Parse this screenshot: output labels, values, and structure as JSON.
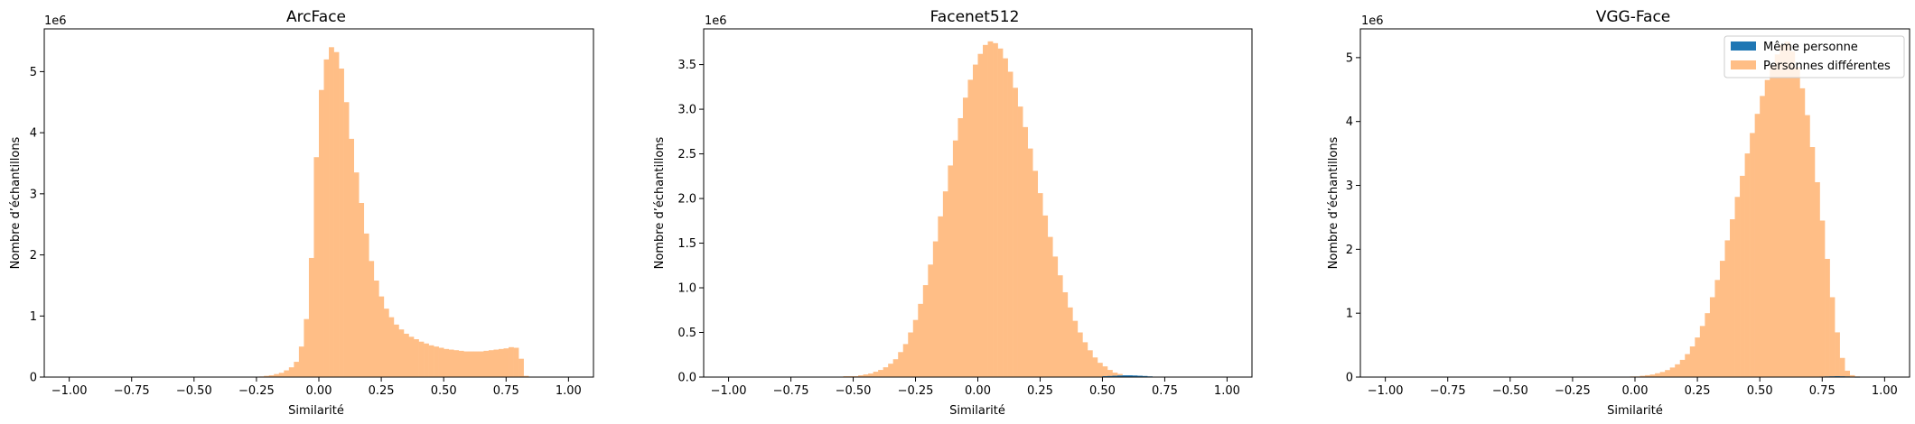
{
  "figure": {
    "background": "#ffffff"
  },
  "legend": {
    "entries": [
      {
        "label": "Même personne",
        "color": "#1f77b4"
      },
      {
        "label": "Personnes différentes",
        "color": "#ffbe86"
      }
    ]
  },
  "chart_data": [
    {
      "type": "histogram",
      "title": "ArcFace",
      "xlabel": "Similarité",
      "ylabel": "Nombre d’échantillons",
      "offset_text": "1e6",
      "xlim": [
        -1.1,
        1.1
      ],
      "ylim": [
        0,
        5.7
      ],
      "xticks": [
        -1.0,
        -0.75,
        -0.5,
        -0.25,
        0.0,
        0.25,
        0.5,
        0.75,
        1.0
      ],
      "xtick_labels": [
        "−1.00",
        "−0.75",
        "−0.50",
        "−0.25",
        "0.00",
        "0.25",
        "0.50",
        "0.75",
        "1.00"
      ],
      "yticks": [
        0,
        1,
        2,
        3,
        4,
        5
      ],
      "ytick_labels": [
        "0",
        "1",
        "2",
        "3",
        "4",
        "5"
      ],
      "bin_start": -1.0,
      "bin_width": 0.02,
      "series": [
        {
          "name": "Personnes différentes",
          "color": "#ffbe86",
          "values": [
            0,
            0,
            0,
            0,
            0,
            0,
            0,
            0,
            0,
            0,
            0,
            0,
            0,
            0,
            0,
            0,
            0,
            0,
            0,
            0,
            0,
            0,
            0,
            0,
            0,
            0,
            0,
            0,
            0,
            0,
            0,
            0,
            0,
            0,
            0,
            0,
            0,
            0,
            0.01,
            0.02,
            0.03,
            0.05,
            0.07,
            0.11,
            0.16,
            0.25,
            0.5,
            0.95,
            1.95,
            3.6,
            4.7,
            5.2,
            5.4,
            5.32,
            5.05,
            4.5,
            3.9,
            3.35,
            2.85,
            2.35,
            1.9,
            1.58,
            1.32,
            1.12,
            0.98,
            0.86,
            0.78,
            0.71,
            0.66,
            0.62,
            0.58,
            0.55,
            0.52,
            0.5,
            0.48,
            0.46,
            0.45,
            0.44,
            0.43,
            0.42,
            0.42,
            0.42,
            0.42,
            0.43,
            0.44,
            0.45,
            0.46,
            0.47,
            0.49,
            0.48,
            0.3,
            0.02,
            0,
            0,
            0,
            0,
            0,
            0,
            0,
            0
          ]
        },
        {
          "name": "Même personne",
          "color": "#1f77b4",
          "values": [
            0,
            0,
            0,
            0,
            0,
            0,
            0,
            0,
            0,
            0,
            0,
            0,
            0,
            0,
            0,
            0,
            0,
            0,
            0,
            0,
            0,
            0,
            0,
            0,
            0,
            0,
            0,
            0,
            0,
            0,
            0,
            0,
            0,
            0,
            0,
            0,
            0,
            0,
            0,
            0,
            0,
            0,
            0,
            0,
            0,
            0,
            0,
            0,
            0,
            0,
            0,
            0,
            0,
            0,
            0,
            0,
            0,
            0,
            0,
            0,
            0,
            0,
            0,
            0,
            0,
            0,
            0,
            0,
            0,
            0,
            0,
            0,
            0,
            0,
            0,
            0,
            0,
            0,
            0,
            0,
            0,
            0,
            0,
            0,
            0,
            0,
            0,
            0,
            0,
            0,
            0,
            0,
            0,
            0,
            0,
            0,
            0,
            0,
            0,
            0
          ]
        }
      ]
    },
    {
      "type": "histogram",
      "title": "Facenet512",
      "xlabel": "Similarité",
      "ylabel": "Nombre d’échantillons",
      "offset_text": "1e6",
      "xlim": [
        -1.1,
        1.1
      ],
      "ylim": [
        0,
        3.9
      ],
      "xticks": [
        -1.0,
        -0.75,
        -0.5,
        -0.25,
        0.0,
        0.25,
        0.5,
        0.75,
        1.0
      ],
      "xtick_labels": [
        "−1.00",
        "−0.75",
        "−0.50",
        "−0.25",
        "0.00",
        "0.25",
        "0.50",
        "0.75",
        "1.00"
      ],
      "yticks": [
        0,
        0.5,
        1.0,
        1.5,
        2.0,
        2.5,
        3.0,
        3.5
      ],
      "ytick_labels": [
        "0.0",
        "0.5",
        "1.0",
        "1.5",
        "2.0",
        "2.5",
        "3.0",
        "3.5"
      ],
      "bin_start": -1.0,
      "bin_width": 0.02,
      "series": [
        {
          "name": "Personnes différentes",
          "color": "#ffbe86",
          "values": [
            0,
            0,
            0,
            0,
            0,
            0,
            0,
            0,
            0,
            0,
            0,
            0,
            0,
            0,
            0,
            0,
            0,
            0,
            0,
            0,
            0,
            0,
            0,
            0.01,
            0.01,
            0.01,
            0.02,
            0.03,
            0.04,
            0.06,
            0.08,
            0.11,
            0.15,
            0.2,
            0.28,
            0.37,
            0.5,
            0.64,
            0.82,
            1.03,
            1.26,
            1.52,
            1.8,
            2.08,
            2.37,
            2.65,
            2.9,
            3.13,
            3.33,
            3.5,
            3.62,
            3.72,
            3.76,
            3.74,
            3.68,
            3.57,
            3.42,
            3.24,
            3.03,
            2.8,
            2.56,
            2.31,
            2.06,
            1.81,
            1.57,
            1.35,
            1.14,
            0.95,
            0.78,
            0.63,
            0.5,
            0.39,
            0.3,
            0.22,
            0.16,
            0.12,
            0.08,
            0.05,
            0.035,
            0.02,
            0.015,
            0.01,
            0.005,
            0,
            0,
            0,
            0,
            0,
            0,
            0,
            0,
            0,
            0,
            0,
            0,
            0,
            0,
            0,
            0,
            0
          ]
        },
        {
          "name": "Même personne",
          "color": "#1f77b4",
          "values": [
            0,
            0,
            0,
            0,
            0,
            0,
            0,
            0,
            0,
            0,
            0,
            0,
            0,
            0,
            0,
            0,
            0,
            0,
            0,
            0,
            0,
            0,
            0,
            0,
            0,
            0,
            0,
            0,
            0,
            0,
            0,
            0,
            0,
            0,
            0,
            0,
            0,
            0,
            0,
            0,
            0,
            0,
            0,
            0,
            0,
            0,
            0,
            0,
            0,
            0,
            0,
            0,
            0,
            0,
            0,
            0,
            0,
            0,
            0,
            0,
            0,
            0,
            0,
            0,
            0,
            0,
            0,
            0,
            0,
            0,
            0,
            0,
            0,
            0,
            0.005,
            0.01,
            0.012,
            0.015,
            0.018,
            0.02,
            0.02,
            0.018,
            0.015,
            0.012,
            0.008,
            0.005,
            0.003,
            0,
            0,
            0,
            0,
            0,
            0,
            0,
            0,
            0,
            0,
            0,
            0,
            0
          ]
        }
      ]
    },
    {
      "type": "histogram",
      "title": "VGG-Face",
      "xlabel": "Similarité",
      "ylabel": "Nombre d’échantillons",
      "offset_text": "1e6",
      "xlim": [
        -1.1,
        1.1
      ],
      "ylim": [
        0,
        5.45
      ],
      "xticks": [
        -1.0,
        -0.75,
        -0.5,
        -0.25,
        0.0,
        0.25,
        0.5,
        0.75,
        1.0
      ],
      "xtick_labels": [
        "−1.00",
        "−0.75",
        "−0.50",
        "−0.25",
        "0.00",
        "0.25",
        "0.50",
        "0.75",
        "1.00"
      ],
      "yticks": [
        0,
        1,
        2,
        3,
        4,
        5
      ],
      "ytick_labels": [
        "0",
        "1",
        "2",
        "3",
        "4",
        "5"
      ],
      "legend_position": "upper right",
      "bin_start": -1.0,
      "bin_width": 0.02,
      "series": [
        {
          "name": "Personnes différentes",
          "color": "#ffbe86",
          "values": [
            0,
            0,
            0,
            0,
            0,
            0,
            0,
            0,
            0,
            0,
            0,
            0,
            0,
            0,
            0,
            0,
            0,
            0,
            0,
            0,
            0,
            0,
            0,
            0,
            0,
            0,
            0,
            0,
            0,
            0,
            0,
            0,
            0,
            0,
            0,
            0,
            0,
            0,
            0,
            0,
            0,
            0,
            0,
            0,
            0,
            0,
            0,
            0,
            0,
            0.01,
            0.01,
            0.02,
            0.03,
            0.04,
            0.06,
            0.08,
            0.11,
            0.15,
            0.2,
            0.27,
            0.36,
            0.48,
            0.62,
            0.8,
            1.0,
            1.25,
            1.52,
            1.82,
            2.14,
            2.47,
            2.82,
            3.15,
            3.5,
            3.82,
            4.12,
            4.4,
            4.65,
            4.88,
            5.05,
            5.2,
            5.25,
            5.1,
            4.85,
            4.52,
            4.1,
            3.6,
            3.05,
            2.45,
            1.85,
            1.25,
            0.7,
            0.3,
            0.1,
            0.03,
            0.01,
            0,
            0,
            0,
            0,
            0
          ]
        },
        {
          "name": "Même personne",
          "color": "#1f77b4",
          "values": [
            0,
            0,
            0,
            0,
            0,
            0,
            0,
            0,
            0,
            0,
            0,
            0,
            0,
            0,
            0,
            0,
            0,
            0,
            0,
            0,
            0,
            0,
            0,
            0,
            0,
            0,
            0,
            0,
            0,
            0,
            0,
            0,
            0,
            0,
            0,
            0,
            0,
            0,
            0,
            0,
            0,
            0,
            0,
            0,
            0,
            0,
            0,
            0,
            0,
            0,
            0,
            0,
            0,
            0,
            0,
            0,
            0,
            0,
            0,
            0,
            0,
            0,
            0,
            0,
            0,
            0,
            0,
            0,
            0,
            0,
            0,
            0,
            0,
            0,
            0,
            0,
            0,
            0,
            0,
            0,
            0,
            0,
            0,
            0,
            0,
            0,
            0.005,
            0.008,
            0.01,
            0.012,
            0.014,
            0.012,
            0.01,
            0.006,
            0.003,
            0,
            0,
            0,
            0,
            0
          ]
        }
      ]
    }
  ]
}
